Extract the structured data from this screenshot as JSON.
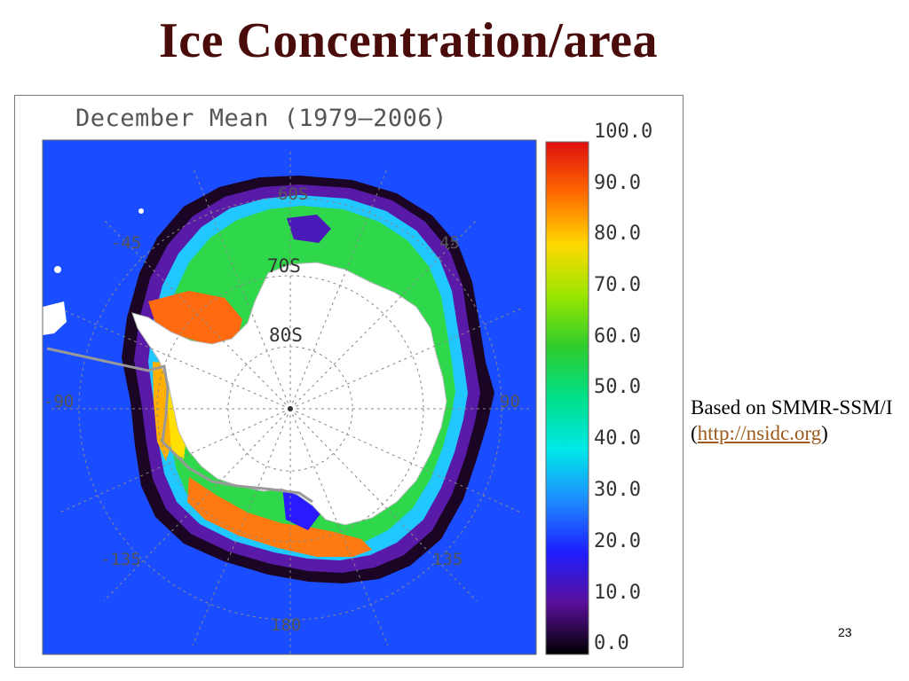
{
  "slide": {
    "title": "Ice Concentration/area",
    "page_number": "23"
  },
  "map": {
    "title": "December Mean (1979–2006)",
    "latitude_labels": [
      "60S",
      "70S",
      "80S"
    ],
    "longitude_labels": {
      "nw": "-45",
      "ne": "45",
      "w": "-90",
      "e": "90",
      "sw": "-135",
      "se": "135",
      "s": "180"
    },
    "colorbar": {
      "min": 0.0,
      "max": 100.0,
      "tick_labels": [
        "100.0",
        "90.0",
        "80.0",
        "70.0",
        "60.0",
        "50.0",
        "40.0",
        "30.0",
        "20.0",
        "10.0",
        "0.0"
      ]
    },
    "colors": {
      "ocean": "#1a4dff",
      "land": "#ffffff",
      "ice_edge": "#1a0524"
    }
  },
  "note": {
    "prefix": "Based on SMMR-SSM/I (",
    "link_text": "http://nsidc.org",
    "suffix": ")"
  }
}
